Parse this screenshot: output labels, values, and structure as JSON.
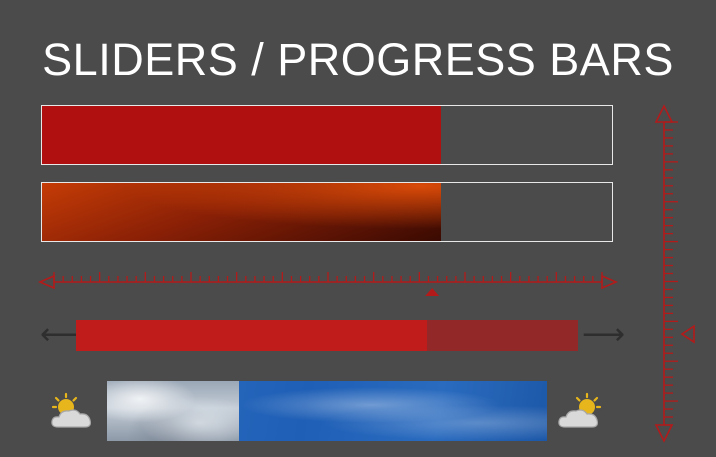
{
  "page": {
    "title": "SLIDERS / PROGRESS BARS"
  },
  "progress_bars": [
    {
      "name": "solid",
      "value_percent": 70,
      "color": "#b01010"
    },
    {
      "name": "gradient",
      "value_percent": 70,
      "color": "#c53c06"
    }
  ],
  "horizontal_ruler": {
    "value_percent": 69,
    "color": "#b31b1b"
  },
  "vertical_ruler": {
    "value_percent": 70,
    "color": "#b31b1b"
  },
  "arrow_slider": {
    "value_percent": 70,
    "fill_color": "#c01c1c",
    "track_color": "#922828",
    "left_icon": "arrow-left-icon",
    "right_icon": "arrow-right-icon"
  },
  "weather_slider": {
    "value_percent": 30,
    "left_icon": "sun-behind-cloud-icon",
    "right_icon": "sun-behind-cloud-icon"
  }
}
